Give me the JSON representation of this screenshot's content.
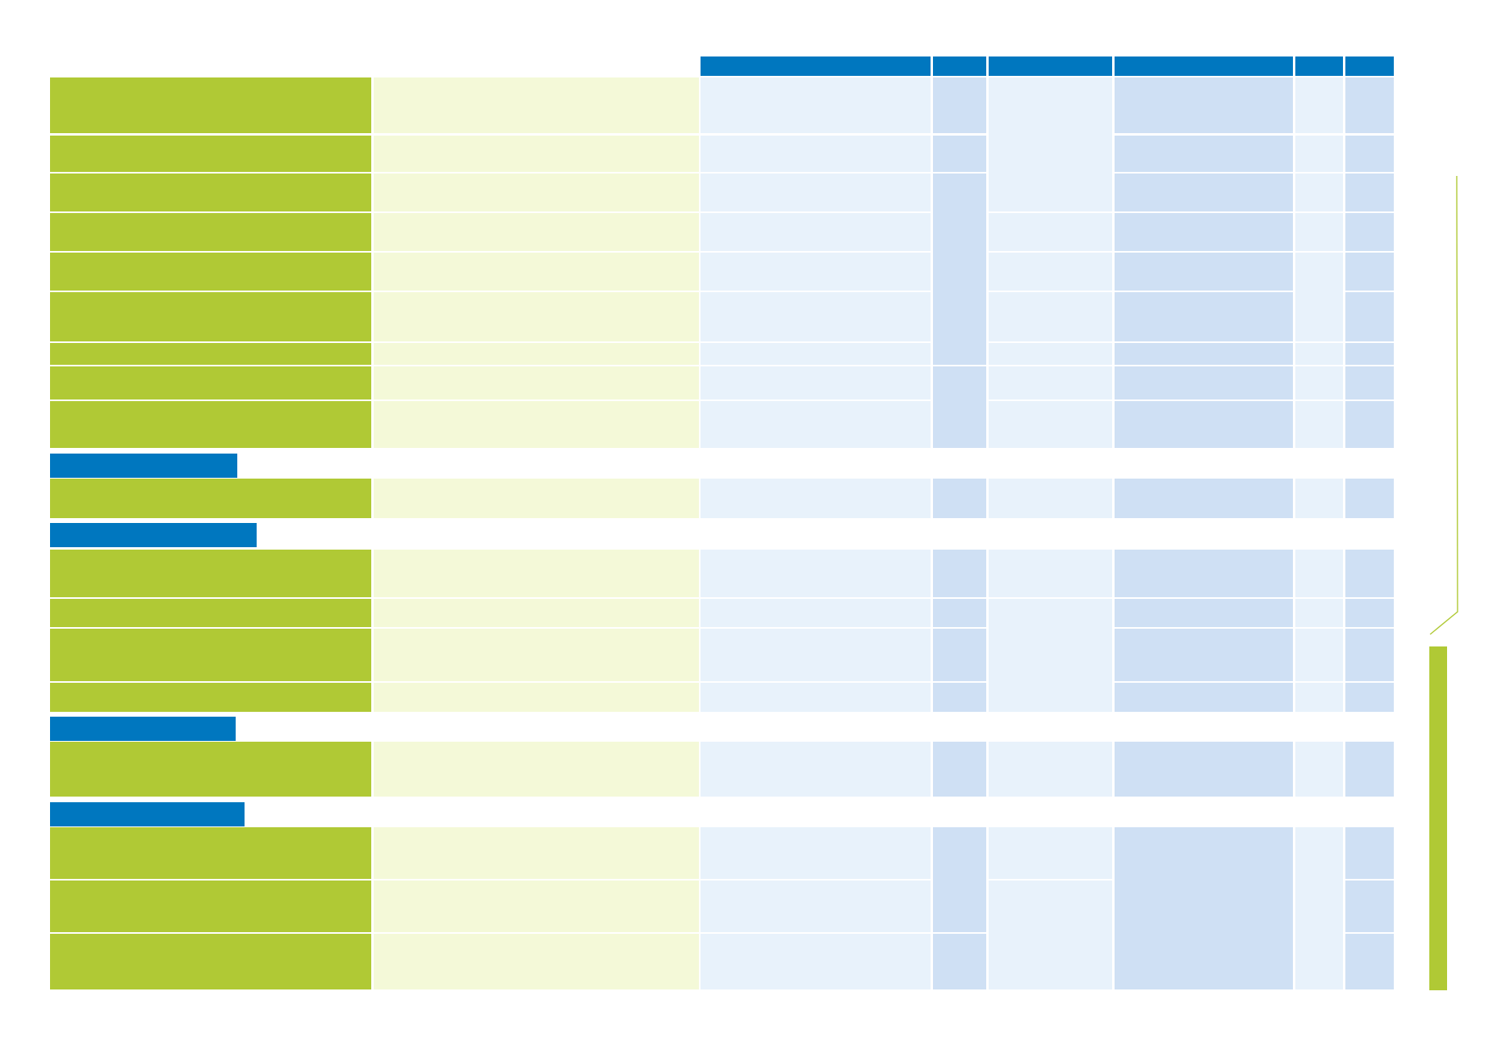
{
  "document": {
    "palette": {
      "header_blue": "#0077bf",
      "row_label_green": "#b0c935",
      "description_pale_green": "#f4f9d8",
      "cell_light_blue": "#e8f2fb",
      "cell_mid_blue": "#cfe0f4",
      "accent_green": "#b0c935"
    },
    "column_headers": [
      "",
      "",
      "",
      "",
      "",
      ""
    ],
    "groups": [
      {
        "name": "group-1",
        "title": "",
        "rows": 9
      },
      {
        "name": "group-2",
        "title": "",
        "rows": 1
      },
      {
        "name": "group-3",
        "title": "",
        "rows": 4
      },
      {
        "name": "group-4",
        "title": "",
        "rows": 1
      },
      {
        "name": "group-5",
        "title": "",
        "rows": 3
      }
    ]
  }
}
